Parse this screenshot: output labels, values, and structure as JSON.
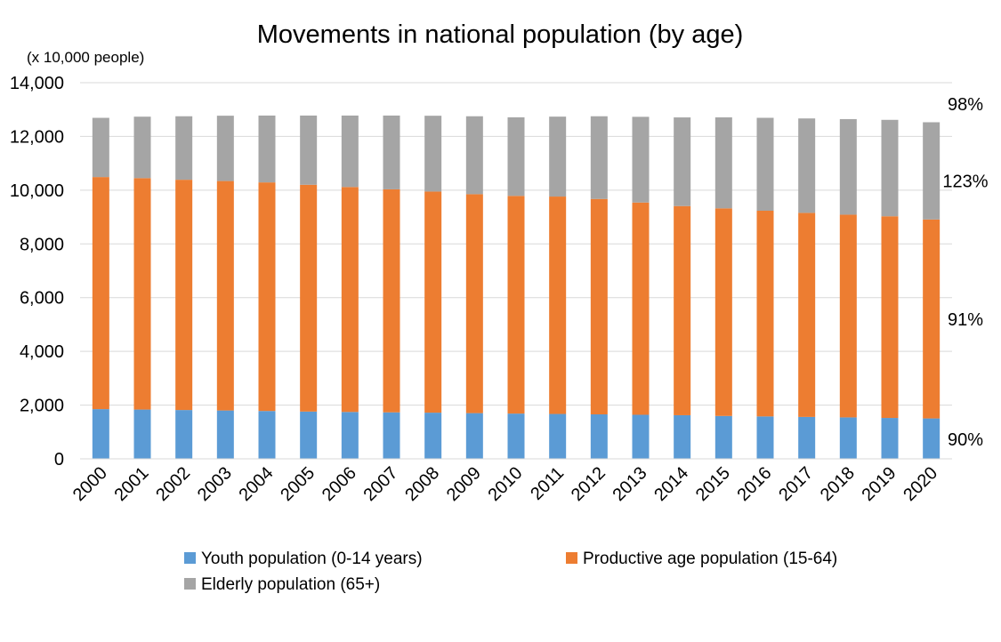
{
  "colors": {
    "youth": "#5b9bd5",
    "productive": "#ed7d31",
    "elderly": "#a5a5a5",
    "gridline": "#d9d9d9"
  },
  "chart_data": {
    "type": "bar",
    "stacked": true,
    "title": "Movements in national population (by age)",
    "unit_label": "(x 10,000 people)",
    "xlabel": "",
    "ylabel": "",
    "ylim": [
      0,
      14000
    ],
    "yticks": [
      "0",
      "2,000",
      "4,000",
      "6,000",
      "8,000",
      "10,000",
      "12,000",
      "14,000"
    ],
    "grid": true,
    "legend_position": "bottom",
    "categories": [
      "2000",
      "2001",
      "2002",
      "2003",
      "2004",
      "2005",
      "2006",
      "2007",
      "2008",
      "2009",
      "2010",
      "2011",
      "2012",
      "2013",
      "2014",
      "2015",
      "2016",
      "2017",
      "2018",
      "2019",
      "2020"
    ],
    "series": [
      {
        "name": "Youth population (0-14 years)",
        "values": [
          1850,
          1834,
          1817,
          1800,
          1781,
          1759,
          1744,
          1730,
          1718,
          1701,
          1684,
          1670,
          1655,
          1639,
          1623,
          1595,
          1578,
          1559,
          1542,
          1521,
          1503
        ]
      },
      {
        "name": "Productive age population (15-64)",
        "values": [
          8638,
          8614,
          8571,
          8540,
          8508,
          8442,
          8373,
          8301,
          8230,
          8149,
          8103,
          8092,
          8017,
          7901,
          7785,
          7728,
          7656,
          7596,
          7545,
          7507,
          7406
        ]
      },
      {
        "name": "Elderly population (65+)",
        "values": [
          2204,
          2287,
          2363,
          2431,
          2488,
          2576,
          2660,
          2746,
          2822,
          2901,
          2925,
          2975,
          3079,
          3190,
          3300,
          3387,
          3459,
          3515,
          3558,
          3589,
          3619
        ]
      }
    ],
    "annotations": [
      {
        "text": "98%",
        "y": 13200
      },
      {
        "text": "123%",
        "y": 10350
      },
      {
        "text": "91%",
        "y": 5200
      },
      {
        "text": "90%",
        "y": 720
      }
    ]
  }
}
